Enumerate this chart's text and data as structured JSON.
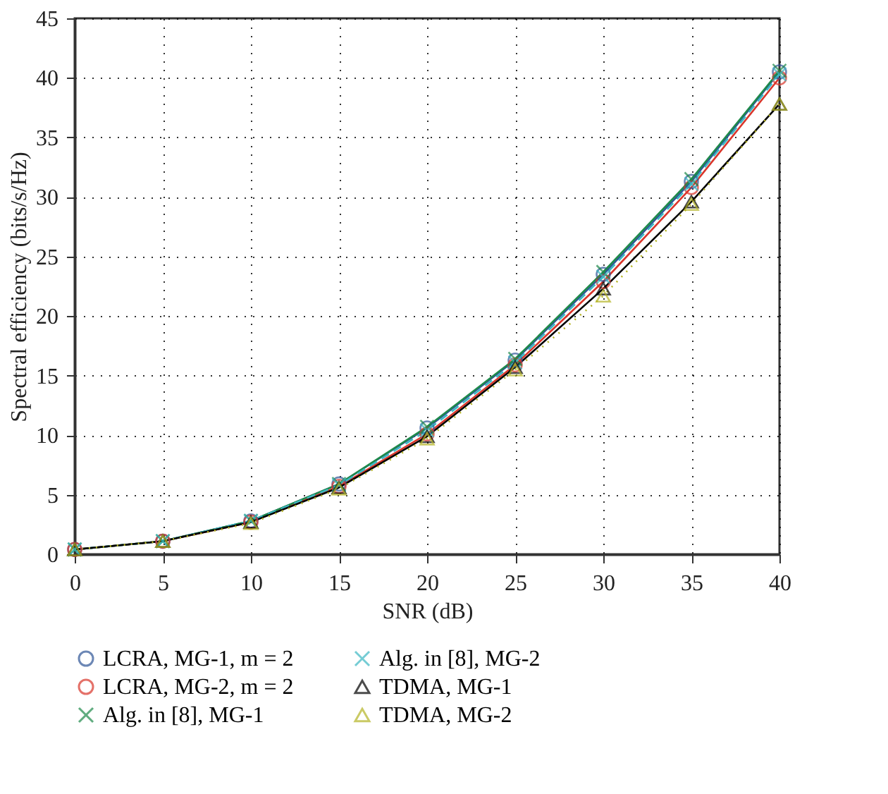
{
  "chart_data": {
    "type": "line",
    "xlabel": "SNR (dB)",
    "ylabel": "Spectral efficiency (bits/s/Hz)",
    "x": [
      0,
      5,
      10,
      15,
      20,
      25,
      30,
      35,
      40
    ],
    "xlim": [
      0,
      40
    ],
    "xticks": [
      0,
      5,
      10,
      15,
      20,
      25,
      30,
      35,
      40
    ],
    "ylim": [
      0,
      45
    ],
    "yticks": [
      0,
      5,
      10,
      15,
      20,
      25,
      30,
      35,
      40,
      45
    ],
    "grid": true,
    "legend": "bottom",
    "series": [
      {
        "name": "LCRA, MG-1, m = 2",
        "color": "#2e5597",
        "marker": "circle",
        "line_style": "solid",
        "values": [
          0.4,
          1.1,
          2.8,
          5.9,
          10.6,
          16.3,
          23.5,
          31.3,
          40.5
        ]
      },
      {
        "name": "LCRA, MG-2, m = 2",
        "color": "#d9362b",
        "marker": "circle",
        "line_style": "solid",
        "values": [
          0.4,
          1.1,
          2.7,
          5.7,
          10.1,
          15.9,
          22.9,
          30.8,
          40.0
        ]
      },
      {
        "name": "Alg. in [8], MG-1",
        "color": "#1e8a4a",
        "marker": "cross",
        "line_style": "solid",
        "values": [
          0.4,
          1.1,
          2.8,
          5.9,
          10.7,
          16.4,
          23.7,
          31.5,
          40.6
        ]
      },
      {
        "name": "Alg. in [8], MG-2",
        "color": "#3bb7c2",
        "marker": "cross",
        "line_style": "dashed",
        "values": [
          0.4,
          1.1,
          2.8,
          5.8,
          10.4,
          16.1,
          23.3,
          31.1,
          40.3
        ]
      },
      {
        "name": "TDMA, MG-1",
        "color": "#000000",
        "marker": "triangle",
        "line_style": "solid",
        "values": [
          0.4,
          1.1,
          2.7,
          5.6,
          9.9,
          15.7,
          22.3,
          29.6,
          37.8
        ]
      },
      {
        "name": "TDMA, MG-2",
        "color": "#b5b525",
        "marker": "triangle",
        "line_style": "dotted",
        "values": [
          0.4,
          1.1,
          2.6,
          5.5,
          9.7,
          15.5,
          21.7,
          29.4,
          37.8
        ]
      }
    ]
  }
}
